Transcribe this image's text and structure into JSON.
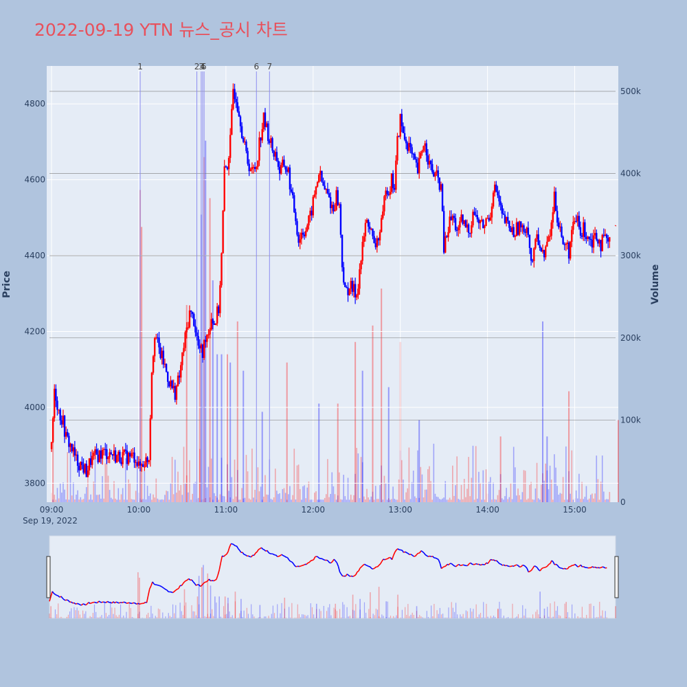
{
  "page": {
    "title": "2022-09-19 YTN 뉴스_공시 차트"
  },
  "colors": {
    "background": "#b0c4de",
    "plot_bg": "#e5ecf6",
    "title": "#e8505b",
    "up": "#ff0000",
    "down": "#0000ff",
    "grid": "#ffffff",
    "marker_line": "#8c8cf0"
  },
  "chart_data": {
    "type": "candlestick",
    "title": "2022-09-19 YTN 뉴스_공시 차트",
    "date_label": "Sep 19, 2022",
    "y_price": {
      "label": "Price",
      "range": [
        3750,
        4900
      ],
      "ticks": [
        3800,
        4000,
        4200,
        4400,
        4600,
        4800
      ]
    },
    "y_volume": {
      "label": "Volume",
      "range": [
        0,
        510000
      ],
      "ticks": [
        0,
        100000,
        200000,
        300000,
        400000,
        500000
      ],
      "tick_labels": [
        "0",
        "100k",
        "200k",
        "300k",
        "400k",
        "500k"
      ]
    },
    "x_time": {
      "range": [
        "09:00",
        "15:30"
      ],
      "ticks": [
        "09:00",
        "10:00",
        "11:00",
        "12:00",
        "13:00",
        "14:00",
        "15:00"
      ]
    },
    "news_markers": [
      {
        "label": "1",
        "time": "10:01"
      },
      {
        "label": "2",
        "time": "10:40"
      },
      {
        "label": "3",
        "time": "10:43"
      },
      {
        "label": "4",
        "time": "10:44"
      },
      {
        "label": "5",
        "time": "10:45"
      },
      {
        "label": "6",
        "time": "11:21"
      },
      {
        "label": "7",
        "time": "11:30"
      }
    ],
    "price_path": [
      [
        "09:00",
        3890
      ],
      [
        "09:02",
        4050
      ],
      [
        "09:05",
        3990
      ],
      [
        "09:08",
        3960
      ],
      [
        "09:10",
        3920
      ],
      [
        "09:13",
        3900
      ],
      [
        "09:17",
        3860
      ],
      [
        "09:20",
        3850
      ],
      [
        "09:22",
        3840
      ],
      [
        "09:24",
        3830
      ],
      [
        "09:27",
        3860
      ],
      [
        "09:30",
        3870
      ],
      [
        "09:35",
        3880
      ],
      [
        "09:40",
        3880
      ],
      [
        "09:45",
        3870
      ],
      [
        "09:50",
        3870
      ],
      [
        "09:55",
        3870
      ],
      [
        "09:58",
        3870
      ],
      [
        "10:00",
        3840
      ],
      [
        "10:02",
        3850
      ],
      [
        "10:05",
        3860
      ],
      [
        "10:07",
        3870
      ],
      [
        "10:09",
        4100
      ],
      [
        "10:11",
        4200
      ],
      [
        "10:14",
        4150
      ],
      [
        "10:17",
        4120
      ],
      [
        "10:20",
        4080
      ],
      [
        "10:23",
        4050
      ],
      [
        "10:25",
        4040
      ],
      [
        "10:28",
        4080
      ],
      [
        "10:31",
        4160
      ],
      [
        "10:35",
        4250
      ],
      [
        "10:38",
        4230
      ],
      [
        "10:41",
        4160
      ],
      [
        "10:44",
        4140
      ],
      [
        "10:46",
        4190
      ],
      [
        "10:48",
        4200
      ],
      [
        "10:50",
        4240
      ],
      [
        "10:52",
        4220
      ],
      [
        "10:55",
        4260
      ],
      [
        "10:57",
        4400
      ],
      [
        "10:59",
        4620
      ],
      [
        "11:01",
        4640
      ],
      [
        "11:03",
        4700
      ],
      [
        "11:05",
        4840
      ],
      [
        "11:07",
        4820
      ],
      [
        "11:10",
        4760
      ],
      [
        "11:12",
        4700
      ],
      [
        "11:15",
        4650
      ],
      [
        "11:18",
        4620
      ],
      [
        "11:21",
        4640
      ],
      [
        "11:23",
        4700
      ],
      [
        "11:26",
        4760
      ],
      [
        "11:29",
        4720
      ],
      [
        "11:32",
        4680
      ],
      [
        "11:35",
        4660
      ],
      [
        "11:37",
        4620
      ],
      [
        "11:40",
        4640
      ],
      [
        "11:43",
        4620
      ],
      [
        "11:45",
        4560
      ],
      [
        "11:48",
        4500
      ],
      [
        "11:50",
        4440
      ],
      [
        "11:52",
        4460
      ],
      [
        "11:55",
        4470
      ],
      [
        "11:58",
        4500
      ],
      [
        "12:01",
        4560
      ],
      [
        "12:04",
        4620
      ],
      [
        "12:07",
        4580
      ],
      [
        "12:10",
        4560
      ],
      [
        "12:12",
        4540
      ],
      [
        "12:14",
        4520
      ],
      [
        "12:16",
        4560
      ],
      [
        "12:18",
        4530
      ],
      [
        "12:20",
        4380
      ],
      [
        "12:22",
        4300
      ],
      [
        "12:25",
        4320
      ],
      [
        "12:27",
        4310
      ],
      [
        "12:30",
        4300
      ],
      [
        "12:32",
        4360
      ],
      [
        "12:34",
        4420
      ],
      [
        "12:36",
        4480
      ],
      [
        "12:38",
        4490
      ],
      [
        "12:40",
        4460
      ],
      [
        "12:42",
        4420
      ],
      [
        "12:44",
        4440
      ],
      [
        "12:46",
        4460
      ],
      [
        "12:48",
        4500
      ],
      [
        "12:50",
        4590
      ],
      [
        "12:52",
        4570
      ],
      [
        "12:54",
        4600
      ],
      [
        "12:56",
        4580
      ],
      [
        "12:58",
        4700
      ],
      [
        "13:00",
        4760
      ],
      [
        "13:02",
        4720
      ],
      [
        "13:04",
        4700
      ],
      [
        "13:06",
        4690
      ],
      [
        "13:08",
        4660
      ],
      [
        "13:10",
        4640
      ],
      [
        "13:12",
        4620
      ],
      [
        "13:14",
        4660
      ],
      [
        "13:16",
        4700
      ],
      [
        "13:18",
        4680
      ],
      [
        "13:20",
        4640
      ],
      [
        "13:22",
        4620
      ],
      [
        "13:24",
        4610
      ],
      [
        "13:26",
        4600
      ],
      [
        "13:28",
        4580
      ],
      [
        "13:30",
        4420
      ],
      [
        "13:32",
        4450
      ],
      [
        "13:34",
        4490
      ],
      [
        "13:36",
        4500
      ],
      [
        "13:38",
        4480
      ],
      [
        "13:40",
        4460
      ],
      [
        "13:42",
        4490
      ],
      [
        "13:44",
        4480
      ],
      [
        "13:46",
        4470
      ],
      [
        "13:48",
        4470
      ],
      [
        "13:50",
        4520
      ],
      [
        "13:52",
        4500
      ],
      [
        "13:54",
        4490
      ],
      [
        "13:56",
        4480
      ],
      [
        "13:58",
        4480
      ],
      [
        "14:00",
        4500
      ],
      [
        "14:02",
        4510
      ],
      [
        "14:04",
        4580
      ],
      [
        "14:06",
        4570
      ],
      [
        "14:08",
        4540
      ],
      [
        "14:10",
        4500
      ],
      [
        "14:12",
        4490
      ],
      [
        "14:14",
        4480
      ],
      [
        "14:16",
        4470
      ],
      [
        "14:18",
        4460
      ],
      [
        "14:20",
        4470
      ],
      [
        "14:22",
        4480
      ],
      [
        "14:24",
        4460
      ],
      [
        "14:26",
        4480
      ],
      [
        "14:28",
        4470
      ],
      [
        "14:30",
        4380
      ],
      [
        "14:32",
        4400
      ],
      [
        "14:34",
        4460
      ],
      [
        "14:36",
        4430
      ],
      [
        "14:38",
        4400
      ],
      [
        "14:40",
        4420
      ],
      [
        "14:42",
        4440
      ],
      [
        "14:44",
        4480
      ],
      [
        "14:46",
        4560
      ],
      [
        "14:48",
        4500
      ],
      [
        "14:50",
        4480
      ],
      [
        "14:52",
        4420
      ],
      [
        "14:54",
        4430
      ],
      [
        "14:56",
        4410
      ],
      [
        "14:58",
        4460
      ],
      [
        "15:00",
        4480
      ],
      [
        "15:02",
        4500
      ],
      [
        "15:04",
        4450
      ],
      [
        "15:06",
        4470
      ],
      [
        "15:08",
        4460
      ],
      [
        "15:10",
        4450
      ],
      [
        "15:12",
        4440
      ],
      [
        "15:14",
        4460
      ],
      [
        "15:16",
        4450
      ],
      [
        "15:18",
        4430
      ],
      [
        "15:20",
        4440
      ],
      [
        "15:22",
        4440
      ],
      [
        "15:24",
        4430
      ]
    ],
    "volume_spikes": [
      [
        "09:01",
        100000,
        "up"
      ],
      [
        "10:01",
        380000,
        "up"
      ],
      [
        "10:02",
        335000,
        "up"
      ],
      [
        "10:33",
        240000,
        "up"
      ],
      [
        "10:42",
        180000,
        "up"
      ],
      [
        "10:43",
        350000,
        "down"
      ],
      [
        "10:45",
        420000,
        "up"
      ],
      [
        "10:46",
        440000,
        "down"
      ],
      [
        "10:49",
        370000,
        "up"
      ],
      [
        "10:51",
        270000,
        "down"
      ],
      [
        "10:54",
        180000,
        "down"
      ],
      [
        "10:57",
        180000,
        "down"
      ],
      [
        "11:01",
        180000,
        "up"
      ],
      [
        "11:03",
        170000,
        "down"
      ],
      [
        "11:08",
        220000,
        "up"
      ],
      [
        "11:12",
        160000,
        "down"
      ],
      [
        "11:25",
        110000,
        "down"
      ],
      [
        "11:42",
        170000,
        "up"
      ],
      [
        "12:04",
        120000,
        "down"
      ],
      [
        "12:17",
        120000,
        "up"
      ],
      [
        "12:29",
        195000,
        "up"
      ],
      [
        "12:34",
        160000,
        "down"
      ],
      [
        "12:41",
        215000,
        "up"
      ],
      [
        "12:47",
        260000,
        "up"
      ],
      [
        "12:52",
        140000,
        "down"
      ],
      [
        "13:00",
        195000,
        "up"
      ],
      [
        "13:13",
        100000,
        "down"
      ],
      [
        "14:09",
        80000,
        "up"
      ],
      [
        "14:38",
        220000,
        "down"
      ],
      [
        "14:41",
        80000,
        "down"
      ],
      [
        "14:56",
        135000,
        "up"
      ],
      [
        "15:30",
        100000,
        "up"
      ]
    ]
  }
}
